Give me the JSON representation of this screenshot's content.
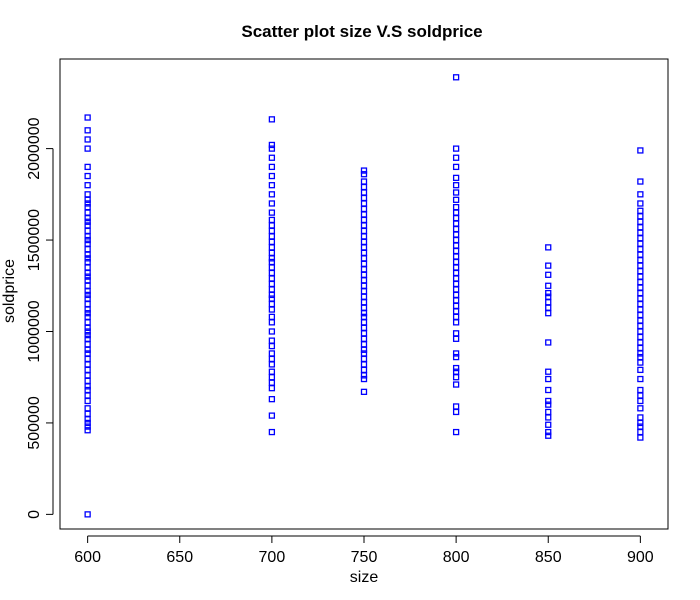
{
  "chart_data": {
    "type": "scatter",
    "title": "Scatter plot size V.S soldprice",
    "xlabel": "size",
    "ylabel": "soldprice",
    "xlim": [
      585,
      915
    ],
    "ylim": [
      -80000,
      2490000
    ],
    "x_ticks": [
      600,
      650,
      700,
      750,
      800,
      850,
      900
    ],
    "y_ticks": [
      0,
      500000,
      1000000,
      1500000,
      2000000
    ],
    "grid": false,
    "legend": "none",
    "marker": "open-square",
    "point_color": "#0000ff",
    "series": [
      {
        "x": 600,
        "values": [
          0,
          460000,
          480000,
          500000,
          520000,
          550000,
          580000,
          620000,
          650000,
          680000,
          700000,
          730000,
          760000,
          790000,
          820000,
          850000,
          880000,
          900000,
          930000,
          960000,
          980000,
          1000000,
          1020000,
          1050000,
          1080000,
          1100000,
          1120000,
          1150000,
          1180000,
          1200000,
          1220000,
          1250000,
          1280000,
          1300000,
          1320000,
          1350000,
          1380000,
          1400000,
          1420000,
          1450000,
          1480000,
          1500000,
          1520000,
          1550000,
          1580000,
          1600000,
          1620000,
          1650000,
          1680000,
          1700000,
          1720000,
          1750000,
          1800000,
          1850000,
          1900000,
          2000000,
          2050000,
          2100000,
          2170000
        ]
      },
      {
        "x": 700,
        "values": [
          450000,
          540000,
          630000,
          690000,
          720000,
          750000,
          780000,
          820000,
          850000,
          880000,
          920000,
          950000,
          1000000,
          1050000,
          1080000,
          1120000,
          1150000,
          1180000,
          1200000,
          1230000,
          1260000,
          1290000,
          1320000,
          1350000,
          1380000,
          1400000,
          1430000,
          1460000,
          1490000,
          1520000,
          1550000,
          1580000,
          1610000,
          1650000,
          1700000,
          1750000,
          1800000,
          1850000,
          1900000,
          1950000,
          2000000,
          2020000,
          2160000
        ]
      },
      {
        "x": 750,
        "values": [
          670000,
          740000,
          760000,
          790000,
          820000,
          850000,
          880000,
          900000,
          930000,
          960000,
          990000,
          1020000,
          1050000,
          1080000,
          1100000,
          1130000,
          1160000,
          1190000,
          1220000,
          1250000,
          1280000,
          1310000,
          1340000,
          1370000,
          1400000,
          1430000,
          1460000,
          1490000,
          1520000,
          1550000,
          1580000,
          1610000,
          1640000,
          1670000,
          1700000,
          1730000,
          1760000,
          1790000,
          1820000,
          1860000,
          1880000
        ]
      },
      {
        "x": 800,
        "values": [
          450000,
          560000,
          590000,
          710000,
          750000,
          780000,
          800000,
          860000,
          880000,
          960000,
          990000,
          1050000,
          1080000,
          1110000,
          1140000,
          1170000,
          1200000,
          1230000,
          1260000,
          1290000,
          1320000,
          1350000,
          1380000,
          1410000,
          1440000,
          1470000,
          1500000,
          1530000,
          1560000,
          1590000,
          1620000,
          1650000,
          1680000,
          1720000,
          1760000,
          1800000,
          1840000,
          1900000,
          1950000,
          2000000,
          2390000
        ]
      },
      {
        "x": 850,
        "values": [
          430000,
          450000,
          490000,
          530000,
          560000,
          600000,
          620000,
          680000,
          740000,
          780000,
          940000,
          1100000,
          1130000,
          1160000,
          1190000,
          1210000,
          1250000,
          1310000,
          1360000,
          1460000
        ]
      },
      {
        "x": 900,
        "values": [
          420000,
          450000,
          480000,
          500000,
          530000,
          580000,
          620000,
          650000,
          680000,
          740000,
          790000,
          830000,
          860000,
          880000,
          910000,
          940000,
          970000,
          1000000,
          1030000,
          1060000,
          1090000,
          1120000,
          1150000,
          1180000,
          1210000,
          1240000,
          1270000,
          1300000,
          1330000,
          1360000,
          1390000,
          1420000,
          1450000,
          1480000,
          1510000,
          1540000,
          1570000,
          1600000,
          1630000,
          1660000,
          1700000,
          1750000,
          1820000,
          1990000
        ]
      }
    ]
  }
}
